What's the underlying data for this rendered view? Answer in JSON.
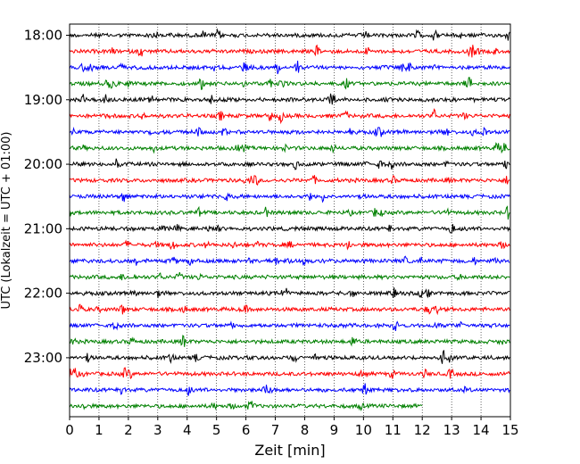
{
  "chart_data": {
    "type": "line",
    "title": "",
    "xlabel": "Zeit  [min]",
    "ylabel": "UTC (Lokalzeit = UTC + 01:00)",
    "xlim": [
      0,
      15
    ],
    "x_ticks": [
      0,
      1,
      2,
      3,
      4,
      5,
      6,
      7,
      8,
      9,
      10,
      11,
      12,
      13,
      14,
      15
    ],
    "y_tick_labels": [
      "18:00",
      "19:00",
      "20:00",
      "21:00",
      "22:00",
      "23:00"
    ],
    "x_grid": "dotted vertical lines at each minute",
    "row_start_times": [
      "18:00",
      "18:15",
      "18:30",
      "18:45",
      "19:00",
      "19:15",
      "19:30",
      "19:45",
      "20:00",
      "20:15",
      "20:30",
      "20:45",
      "21:00",
      "21:15",
      "21:30",
      "21:45",
      "22:00",
      "22:15",
      "22:30",
      "22:45",
      "23:00",
      "23:15",
      "23:30",
      "23:45"
    ],
    "color_cycle": [
      "#000000",
      "#ff0000",
      "#0000ff",
      "#008000"
    ],
    "last_row_end_minute": 12,
    "series_description": "Seismogram helicorder: each row is a 15-minute trace of ground motion"
  }
}
